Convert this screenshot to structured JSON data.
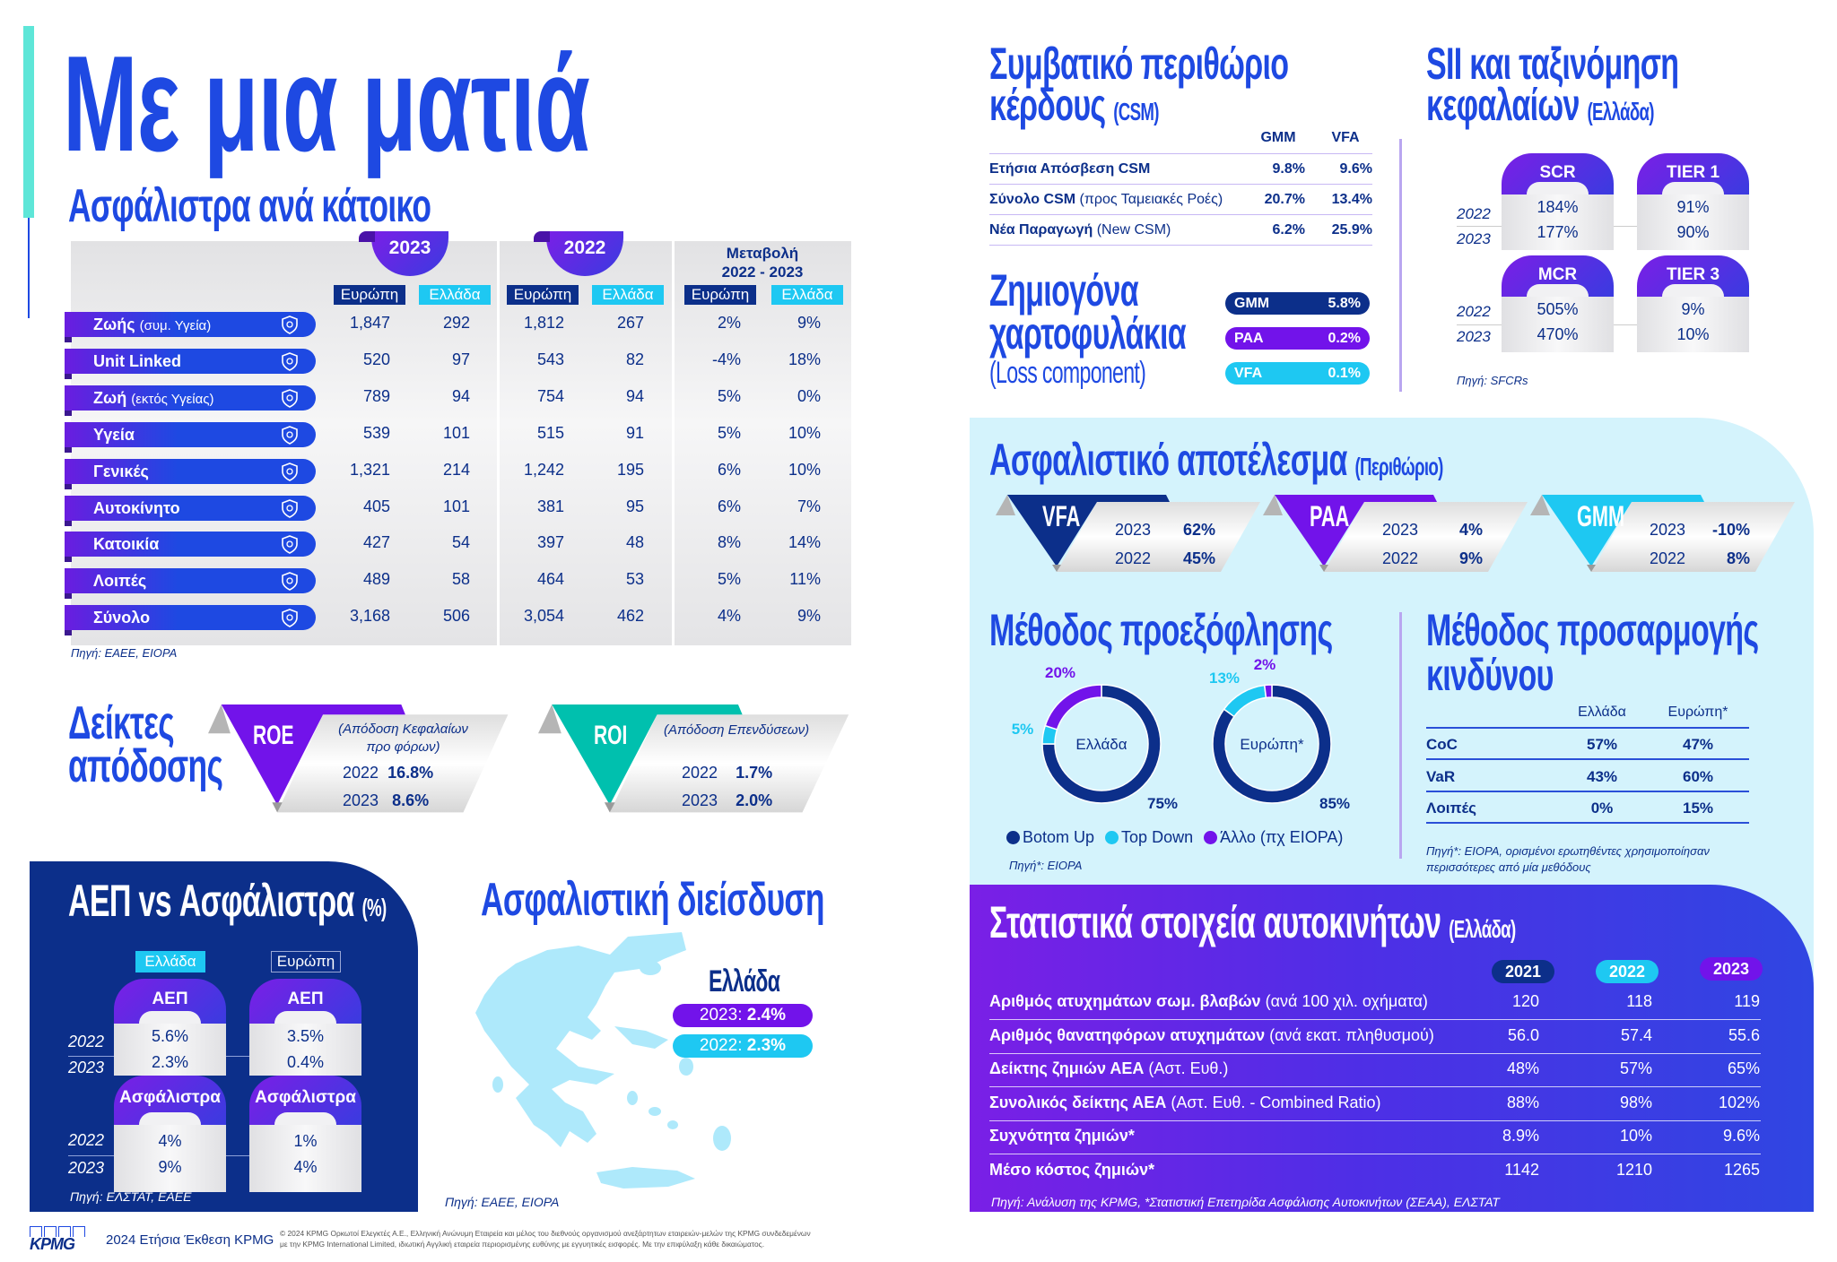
{
  "page_title": "Με μια ματιά",
  "colors": {
    "blue": "#1e49e2",
    "navy": "#0c2f8a",
    "purple": "#7213ea",
    "cyan": "#1ec8f2",
    "teal": "#00c0ae"
  },
  "premiums": {
    "title": "Ασφάλιστρα ανά κάτοικο",
    "year_2023": "2023",
    "year_2022": "2022",
    "change_line1": "Μεταβολή",
    "change_line2": "2022 - 2023",
    "col_europe": "Ευρώπη",
    "col_greece": "Ελλάδα",
    "rows": [
      {
        "label": "Ζωής",
        "note": "(συμ. Υγεία)",
        "icon": "hands-heart-icon",
        "values": [
          "1,847",
          "292",
          "1,812",
          "267",
          "2%",
          "9%"
        ]
      },
      {
        "label": "Unit Linked",
        "note": "",
        "icon": "shield-dollar-icon",
        "values": [
          "520",
          "97",
          "543",
          "82",
          "-4%",
          "18%"
        ]
      },
      {
        "label": "Ζωή",
        "note": "(εκτός Υγείας)",
        "icon": "person-shield-icon",
        "values": [
          "789",
          "94",
          "754",
          "94",
          "5%",
          "0%"
        ]
      },
      {
        "label": "Υγεία",
        "note": "",
        "icon": "shield-cross-icon",
        "values": [
          "539",
          "101",
          "515",
          "91",
          "5%",
          "10%"
        ]
      },
      {
        "label": "Γενικές",
        "note": "",
        "icon": "umbrella-icon",
        "values": [
          "1,321",
          "214",
          "1,242",
          "195",
          "6%",
          "10%"
        ]
      },
      {
        "label": "Αυτοκίνητο",
        "note": "",
        "icon": "car-shield-icon",
        "values": [
          "405",
          "101",
          "381",
          "95",
          "6%",
          "7%"
        ]
      },
      {
        "label": "Κατοικία",
        "note": "",
        "icon": "house-icon",
        "values": [
          "427",
          "54",
          "397",
          "48",
          "8%",
          "14%"
        ]
      },
      {
        "label": "Λοιπές",
        "note": "",
        "icon": "shield-icon",
        "values": [
          "489",
          "58",
          "464",
          "53",
          "5%",
          "11%"
        ]
      },
      {
        "label": "Σύνολο",
        "note": "",
        "icon": "shield-check-icon",
        "values": [
          "3,168",
          "506",
          "3,054",
          "462",
          "4%",
          "9%"
        ]
      }
    ],
    "source": "Πηγή: ΕΑΕΕ, EIOPA"
  },
  "performance": {
    "title_line1": "Δείκτες",
    "title_line2": "απόδοσης",
    "roe": {
      "label": "ROE",
      "desc_line1": "(Απόδοση Κεφαλαίων",
      "desc_line2": "προ φόρων)",
      "rows": [
        {
          "year": "2022",
          "value": "16.8%"
        },
        {
          "year": "2023",
          "value": "8.6%"
        }
      ]
    },
    "roi": {
      "label": "ROI",
      "desc_line1": "(Απόδοση Επενδύσεων)",
      "rows": [
        {
          "year": "2022",
          "value": "1.7%"
        },
        {
          "year": "2023",
          "value": "2.0%"
        }
      ]
    }
  },
  "gdp": {
    "title": "ΑΕΠ vs Ασφάλιστρα",
    "title_suffix": "(%)",
    "tag_greece": "Ελλάδα",
    "tag_europe": "Ευρώπη",
    "gdp_label": "ΑΕΠ",
    "premiums_label": "Ασφάλιστρα",
    "years": [
      "2022",
      "2023"
    ],
    "greece": {
      "gdp": [
        "5.6%",
        "2.3%"
      ],
      "premiums": [
        "4%",
        "9%"
      ]
    },
    "europe": {
      "gdp": [
        "3.5%",
        "0.4%"
      ],
      "premiums": [
        "1%",
        "4%"
      ]
    },
    "source": "Πηγή: ΕΛΣΤΑΤ, ΕΑΕΕ"
  },
  "penetration": {
    "title": "Ασφαλιστική διείσδυση",
    "country": "Ελλάδα",
    "y2023_label": "2023:",
    "y2023_value": "2.4%",
    "y2022_label": "2022:",
    "y2022_value": "2.3%",
    "source": "Πηγή: ΕΑΕΕ, EIOPA"
  },
  "csm": {
    "title_line1": "Συμβατικό περιθώριο",
    "title_line2": "κέρδους",
    "title_suffix": "(CSM)",
    "col_gmm": "GMM",
    "col_vfa": "VFA",
    "rows": [
      {
        "label": "Ετήσια Απόσβεση CSM",
        "note": "",
        "gmm": "9.8%",
        "vfa": "9.6%"
      },
      {
        "label": "Σύνολο CSM",
        "note": "(προς Ταμειακές Ροές)",
        "gmm": "20.7%",
        "vfa": "13.4%"
      },
      {
        "label": "Νέα Παραγωγή",
        "note": "(New CSM)",
        "gmm": "6.2%",
        "vfa": "25.9%"
      }
    ]
  },
  "loss": {
    "title_line1": "Ζημιογόνα",
    "title_line2": "χαρτοφυλάκια",
    "title_line3": "(Loss component)",
    "items": [
      {
        "label": "GMM",
        "value": "5.8%",
        "color": "#0c2f8a"
      },
      {
        "label": "PAA",
        "value": "0.2%",
        "color": "#7213ea"
      },
      {
        "label": "VFA",
        "value": "0.1%",
        "color": "#1ec8f2"
      }
    ]
  },
  "sii": {
    "title_line1": "SII και ταξινόμηση",
    "title_line2": "κεφαλαίων",
    "title_suffix": "(Ελλάδα)",
    "years": [
      "2022",
      "2023"
    ],
    "cards": [
      {
        "label": "SCR",
        "values": [
          "184%",
          "177%"
        ]
      },
      {
        "label": "TIER 1",
        "values": [
          "91%",
          "90%"
        ]
      },
      {
        "label": "MCR",
        "values": [
          "505%",
          "470%"
        ]
      },
      {
        "label": "TIER 3",
        "values": [
          "9%",
          "10%"
        ]
      }
    ],
    "source": "Πηγή: SFCRs"
  },
  "result": {
    "title": "Ασφαλιστικό αποτέλεσμα",
    "title_suffix": "(Περιθώριο)",
    "groups": [
      {
        "label": "VFA",
        "color": "#0c2f8a",
        "rows": [
          {
            "year": "2023",
            "value": "62%"
          },
          {
            "year": "2022",
            "value": "45%"
          }
        ]
      },
      {
        "label": "PAA",
        "color": "#7213ea",
        "rows": [
          {
            "year": "2023",
            "value": "4%"
          },
          {
            "year": "2022",
            "value": "9%"
          }
        ]
      },
      {
        "label": "GMM",
        "color": "#1ec8f2",
        "rows": [
          {
            "year": "2023",
            "value": "-10%"
          },
          {
            "year": "2022",
            "value": "8%"
          }
        ]
      }
    ]
  },
  "discount": {
    "title": "Μέθοδος προεξόφλησης",
    "legend": [
      {
        "label": "Botom Up",
        "color": "#0c2f8a"
      },
      {
        "label": "Top Down",
        "color": "#1ec8f2"
      },
      {
        "label": "Άλλο (πχ EIOPA)",
        "color": "#7213ea"
      }
    ],
    "donuts": [
      {
        "center_label": "Ελλάδα",
        "values": [
          75,
          5,
          20
        ],
        "labels": [
          "75%",
          "5%",
          "20%"
        ]
      },
      {
        "center_label": "Ευρώπη*",
        "values": [
          85,
          13,
          2
        ],
        "labels": [
          "85%",
          "13%",
          "2%"
        ]
      }
    ],
    "source": "Πηγή*: EIOPA"
  },
  "risk": {
    "title_line1": "Μέθοδος προσαρμογής",
    "title_line2": "κινδύνου",
    "col_greece": "Ελλάδα",
    "col_europe": "Ευρώπη*",
    "rows": [
      {
        "label": "CoC",
        "greece": "57%",
        "europe": "47%"
      },
      {
        "label": "VaR",
        "greece": "43%",
        "europe": "60%"
      },
      {
        "label": "Λοιπές",
        "greece": "0%",
        "europe": "15%"
      }
    ],
    "source_line1": "Πηγή*: EIOPA, ορισμένοι ερωτηθέντες χρησιμοποίησαν",
    "source_line2": "περισσότερες από μία μεθόδους"
  },
  "auto": {
    "title": "Στατιστικά στοιχεία αυτοκινήτων",
    "title_suffix": "(Ελλάδα)",
    "years": [
      {
        "label": "2021",
        "color": "#0c2f8a"
      },
      {
        "label": "2022",
        "color": "#1ec8f2"
      },
      {
        "label": "2023",
        "color": "#7213ea"
      }
    ],
    "rows": [
      {
        "label": "Αριθμός ατυχημάτων σωμ. βλαβών",
        "note": "(ανά 100 χιλ. οχήματα)",
        "values": [
          "120",
          "118",
          "119"
        ]
      },
      {
        "label": "Αριθμός θανατηφόρων ατυχημάτων",
        "note": "(ανά εκατ. πληθυσμού)",
        "values": [
          "56.0",
          "57.4",
          "55.6"
        ]
      },
      {
        "label": "Δείκτης ζημιών ΑΕΑ",
        "note": "(Αστ. Ευθ.)",
        "values": [
          "48%",
          "57%",
          "65%"
        ]
      },
      {
        "label": "Συνολικός δείκτης ΑΕΑ",
        "note": "(Αστ. Ευθ. - Combined Ratio)",
        "values": [
          "88%",
          "98%",
          "102%"
        ]
      },
      {
        "label": "Συχνότητα ζημιών*",
        "note": "",
        "values": [
          "8.9%",
          "10%",
          "9.6%"
        ]
      },
      {
        "label": "Μέσο κόστος ζημιών*",
        "note": "",
        "values": [
          "1142",
          "1210",
          "1265"
        ]
      }
    ],
    "source": "Πηγή: Ανάλυση της KPMG, *Στατιστική Επετηρίδα Ασφάλισης Αυτοκινήτων (ΣΕΑΑ), ΕΛΣΤΑΤ"
  },
  "footer": {
    "logo": "KPMG",
    "report": "2024 Ετήσια Έκθεση KPMG",
    "legal_line1": "© 2024 KPMG Ορκωτοί Ελεγκτές Α.Ε., Ελληνική Ανώνυμη Εταιρεία και μέλος του διεθνούς οργανισμού ανεξάρτητων εταιρειών-μελών της KPMG συνδεδεμένων",
    "legal_line2": "με την KPMG International Limited, ιδιωτική Αγγλική εταιρεία περιορισμένης ευθύνης με εγγυητικές εισφορές. Με την επιφύλαξη κάθε δικαιώματος."
  }
}
